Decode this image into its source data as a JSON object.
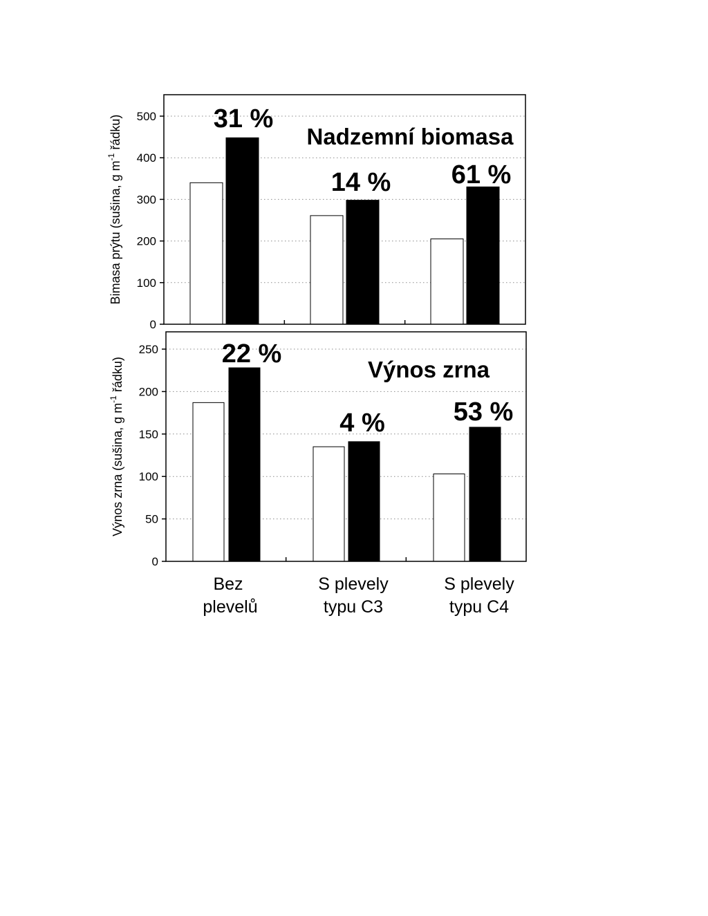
{
  "chart_data": [
    {
      "type": "bar",
      "title": "Nadzemní biomasa",
      "ylabel": {
        "pre": "Bimasa prýtu (sušina, g m",
        "sup": "-1",
        "post": " řádku)"
      },
      "ylim": [
        0,
        550
      ],
      "yticks": [
        0,
        100,
        200,
        300,
        400,
        500
      ],
      "grid": true,
      "categories": [
        "Bez plevelů",
        "S plevely typu C3",
        "S plevely typu C4"
      ],
      "series": [
        {
          "name": "open",
          "values": [
            340,
            261,
            205
          ]
        },
        {
          "name": "filled",
          "values": [
            448,
            298,
            330
          ]
        }
      ],
      "annotations": [
        "31 %",
        "14 %",
        "61 %"
      ]
    },
    {
      "type": "bar",
      "title": "Výnos zrna",
      "ylabel": {
        "pre": "Výnos zrna (sušina, g m",
        "sup": "-1",
        "post": " řádku)"
      },
      "ylim": [
        0,
        270
      ],
      "yticks": [
        0,
        50,
        100,
        150,
        200,
        250
      ],
      "grid": true,
      "categories": [
        "Bez plevelů",
        "S plevely typu C3",
        "S plevely typu C4"
      ],
      "series": [
        {
          "name": "open",
          "values": [
            187,
            135,
            103
          ]
        },
        {
          "name": "filled",
          "values": [
            228,
            141,
            158
          ]
        }
      ],
      "annotations": [
        "22 %",
        "4 %",
        "53 %"
      ]
    }
  ],
  "category_labels": [
    {
      "line1": "Bez",
      "line2": "plevelů"
    },
    {
      "line1": "S plevely",
      "line2": "typu C3"
    },
    {
      "line1": "S plevely",
      "line2": "typu C4"
    }
  ],
  "colors": {
    "open_fill": "#ffffff",
    "filled_fill": "#000000",
    "grid": "#8a8a8a"
  }
}
